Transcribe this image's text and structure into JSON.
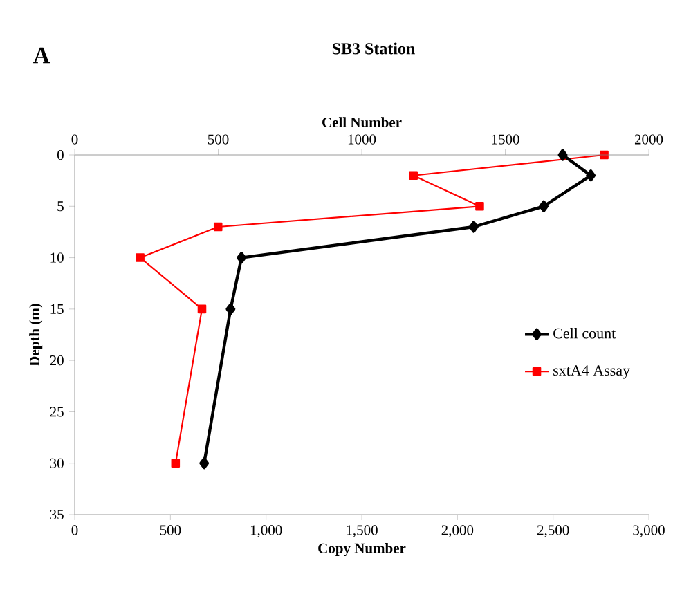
{
  "chart_data": {
    "type": "line",
    "title": "SB3 Station",
    "annotations": [
      "A"
    ],
    "xlabel": "Copy Number",
    "x2label": "Cell Number",
    "ylabel": "Depth (m)",
    "xlim": [
      0,
      3000
    ],
    "xticks": [
      0,
      500,
      {
        "value": 1000,
        "label": "1,000"
      },
      {
        "value": 1500,
        "label": "1,500"
      },
      {
        "value": 2000,
        "label": "2,000"
      },
      {
        "value": 2500,
        "label": "2,500"
      },
      {
        "value": 3000,
        "label": "3,000"
      }
    ],
    "x2lim": [
      0,
      2000
    ],
    "x2ticks": [
      0,
      500,
      1000,
      1500,
      2000
    ],
    "ylim": [
      35,
      0
    ],
    "yticks": [
      0,
      5,
      10,
      15,
      20,
      25,
      30,
      35
    ],
    "legend": "right",
    "grid": false,
    "series": [
      {
        "name": "Cell count",
        "color": "#000000",
        "axis": "x2",
        "marker": "diamond",
        "x": [
          1700,
          1798,
          1634,
          1390,
          581,
          543,
          451
        ],
        "values": [
          0,
          2,
          5,
          7,
          10,
          15,
          30
        ]
      },
      {
        "name": "sxtA4 Assay",
        "color": "#ff0000",
        "marker": "square",
        "x": [
          2767,
          1770,
          2116,
          749,
          342,
          665,
          527
        ],
        "values": [
          0,
          2,
          5,
          7,
          10,
          15,
          30
        ]
      }
    ]
  }
}
